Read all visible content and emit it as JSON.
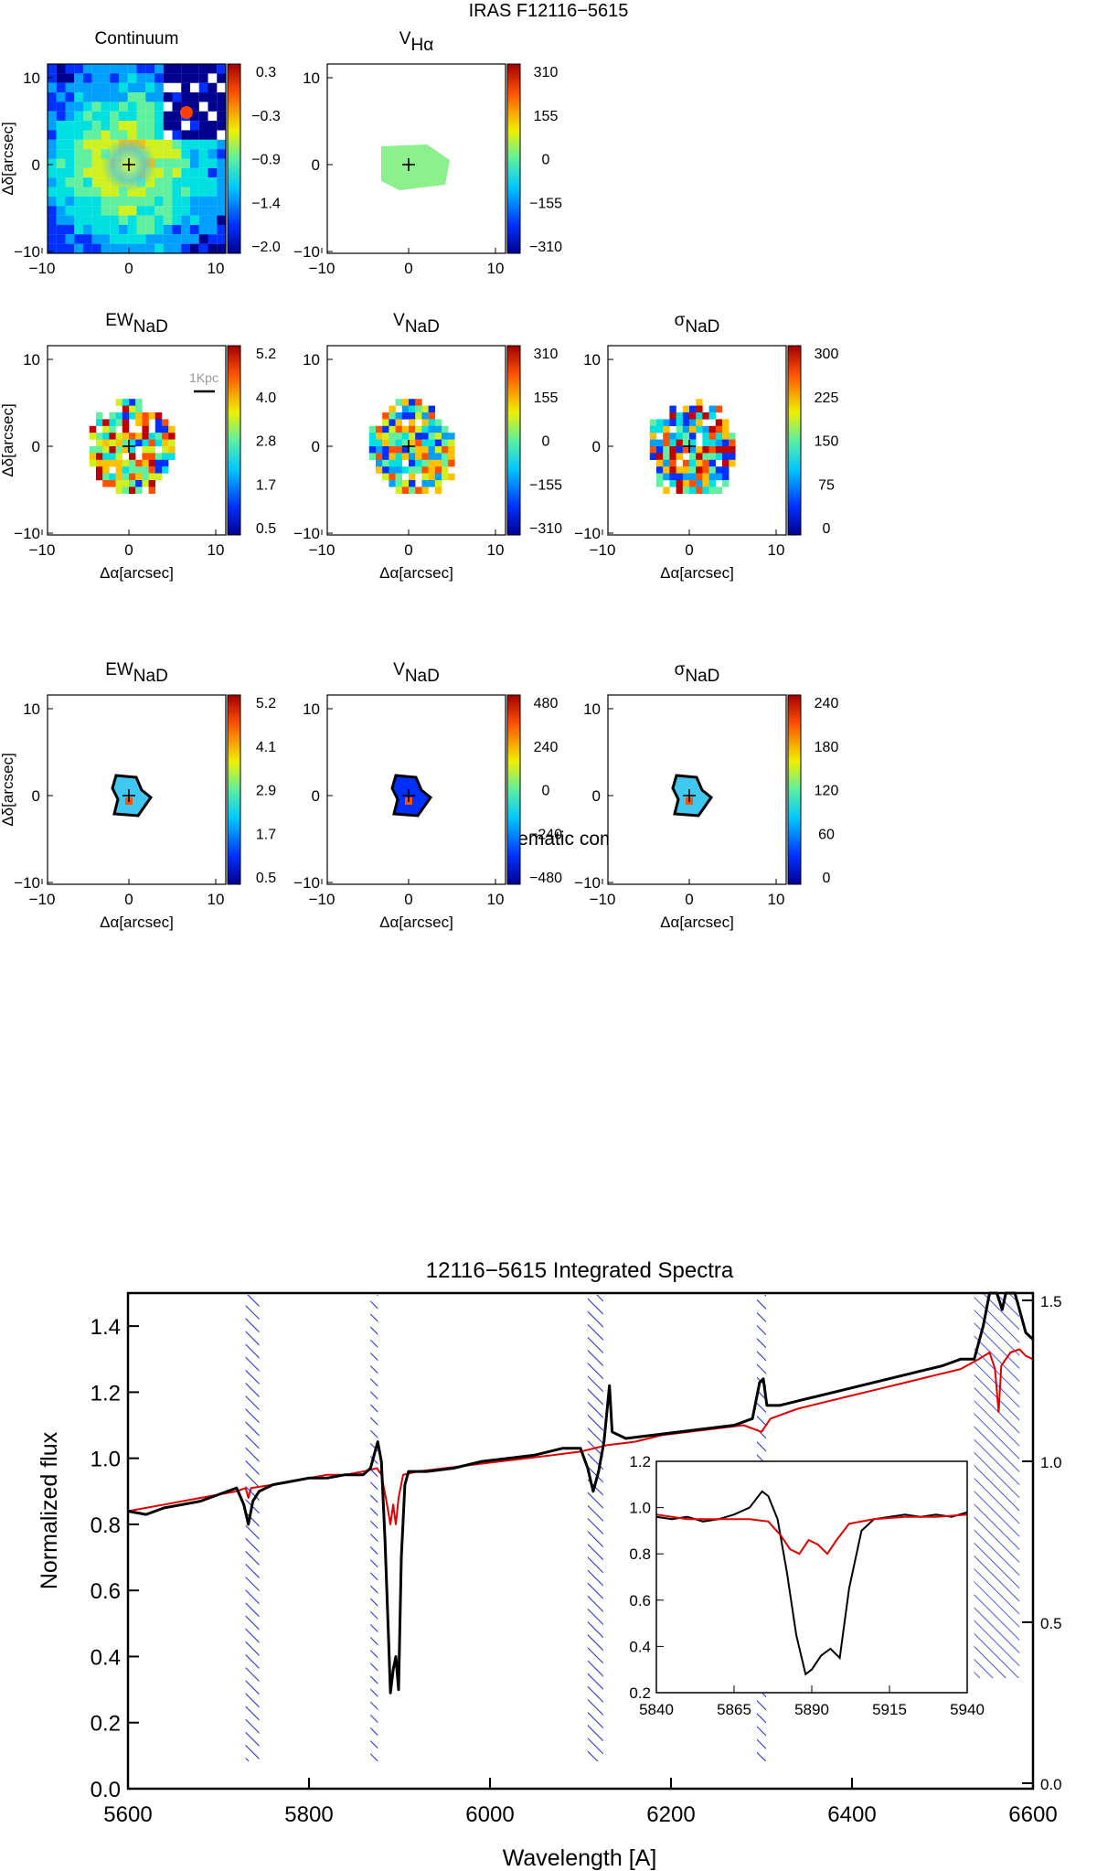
{
  "figure_title": "IRAS F12116−5615",
  "section2_title": "Second kinematic component",
  "panels": [
    {
      "id": "continuum",
      "title_main": "Continuum",
      "title_sub": "",
      "row": 0,
      "col": 0,
      "ticks": [
        "0.3",
        "−0.3",
        "−0.9",
        "−1.4",
        "−2.0"
      ],
      "xlabel": "",
      "ylabel": "Δδ[arcsec]",
      "scalebar": ""
    },
    {
      "id": "v-halpha",
      "title_main": "V",
      "title_sub": "Hα",
      "row": 0,
      "col": 1,
      "ticks": [
        "310",
        "155",
        "0",
        "−155",
        "−310"
      ],
      "xlabel": "",
      "ylabel": "",
      "scalebar": ""
    },
    {
      "id": "ew-nad",
      "title_main": "EW",
      "title_sub": "NaD",
      "row": 1,
      "col": 0,
      "ticks": [
        "5.2",
        "4.0",
        "2.8",
        "1.7",
        "0.5"
      ],
      "xlabel": "Δα[arcsec]",
      "ylabel": "Δδ[arcsec]",
      "scalebar": "1Kpc"
    },
    {
      "id": "v-nad",
      "title_main": "V",
      "title_sub": "NaD",
      "row": 1,
      "col": 1,
      "ticks": [
        "310",
        "155",
        "0",
        "−155",
        "−310"
      ],
      "xlabel": "Δα[arcsec]",
      "ylabel": "",
      "scalebar": ""
    },
    {
      "id": "sigma-nad",
      "title_main": "σ",
      "title_sub": "NaD",
      "row": 1,
      "col": 2,
      "ticks": [
        "300",
        "225",
        "150",
        "75",
        "0"
      ],
      "xlabel": "Δα[arcsec]",
      "ylabel": "",
      "scalebar": ""
    },
    {
      "id": "ew-nad-2",
      "title_main": "EW",
      "title_sub": "NaD",
      "row": 2,
      "col": 0,
      "ticks": [
        "5.2",
        "4.1",
        "2.9",
        "1.7",
        "0.5"
      ],
      "xlabel": "Δα[arcsec]",
      "ylabel": "Δδ[arcsec]",
      "scalebar": ""
    },
    {
      "id": "v-nad-2",
      "title_main": "V",
      "title_sub": "NaD",
      "row": 2,
      "col": 1,
      "ticks": [
        "480",
        "240",
        "0",
        "−240",
        "−480"
      ],
      "xlabel": "Δα[arcsec]",
      "ylabel": "",
      "scalebar": ""
    },
    {
      "id": "sigma-nad-2",
      "title_main": "σ",
      "title_sub": "NaD",
      "row": 2,
      "col": 2,
      "ticks": [
        "240",
        "180",
        "120",
        "60",
        "0"
      ],
      "xlabel": "Δα[arcsec]",
      "ylabel": "",
      "scalebar": ""
    }
  ],
  "map_axes": {
    "xticks": [
      "−10",
      "0",
      "10"
    ],
    "yticks": [
      "10",
      "0",
      "−10"
    ]
  },
  "chart_data": [
    {
      "type": "line",
      "title": "12116−5615 Integrated Spectra",
      "xlabel": "Wavelength [A]",
      "ylabel": "Normalized flux",
      "xlim": [
        5600,
        6600
      ],
      "ylim": [
        0,
        1.5
      ],
      "xticks": [
        5600,
        5800,
        6000,
        6200,
        6400,
        6600
      ],
      "yticks": [
        0.0,
        0.2,
        0.4,
        0.6,
        0.8,
        1.0,
        1.2,
        1.4
      ],
      "right_ticks": [
        "1.5",
        "1.0",
        "0.5",
        "0.0"
      ],
      "masked_regions": [
        [
          5730,
          5745
        ],
        [
          5868,
          5876
        ],
        [
          6108,
          6125
        ],
        [
          6295,
          6305
        ],
        [
          6535,
          6585
        ]
      ],
      "series": [
        {
          "color": "#000000",
          "points": [
            [
              5600,
              0.84
            ],
            [
              5620,
              0.83
            ],
            [
              5640,
              0.85
            ],
            [
              5660,
              0.86
            ],
            [
              5680,
              0.87
            ],
            [
              5700,
              0.89
            ],
            [
              5720,
              0.91
            ],
            [
              5728,
              0.86
            ],
            [
              5733,
              0.8
            ],
            [
              5738,
              0.87
            ],
            [
              5745,
              0.9
            ],
            [
              5760,
              0.92
            ],
            [
              5780,
              0.93
            ],
            [
              5800,
              0.94
            ],
            [
              5820,
              0.94
            ],
            [
              5840,
              0.95
            ],
            [
              5860,
              0.95
            ],
            [
              5868,
              0.97
            ],
            [
              5876,
              1.05
            ],
            [
              5880,
              0.99
            ],
            [
              5884,
              0.75
            ],
            [
              5888,
              0.45
            ],
            [
              5890,
              0.29
            ],
            [
              5893,
              0.36
            ],
            [
              5896,
              0.4
            ],
            [
              5899,
              0.3
            ],
            [
              5902,
              0.7
            ],
            [
              5906,
              0.92
            ],
            [
              5910,
              0.96
            ],
            [
              5930,
              0.96
            ],
            [
              5960,
              0.97
            ],
            [
              5990,
              0.99
            ],
            [
              6020,
              1.0
            ],
            [
              6050,
              1.01
            ],
            [
              6080,
              1.03
            ],
            [
              6100,
              1.03
            ],
            [
              6108,
              0.97
            ],
            [
              6114,
              0.9
            ],
            [
              6120,
              0.96
            ],
            [
              6126,
              1.05
            ],
            [
              6132,
              1.22
            ],
            [
              6135,
              1.08
            ],
            [
              6150,
              1.06
            ],
            [
              6180,
              1.07
            ],
            [
              6210,
              1.08
            ],
            [
              6240,
              1.09
            ],
            [
              6270,
              1.1
            ],
            [
              6290,
              1.12
            ],
            [
              6298,
              1.23
            ],
            [
              6302,
              1.24
            ],
            [
              6306,
              1.16
            ],
            [
              6320,
              1.16
            ],
            [
              6350,
              1.18
            ],
            [
              6380,
              1.2
            ],
            [
              6410,
              1.22
            ],
            [
              6440,
              1.24
            ],
            [
              6470,
              1.26
            ],
            [
              6500,
              1.28
            ],
            [
              6520,
              1.3
            ],
            [
              6535,
              1.3
            ],
            [
              6545,
              1.4
            ],
            [
              6552,
              1.5
            ],
            [
              6560,
              1.5
            ],
            [
              6566,
              1.45
            ],
            [
              6570,
              1.5
            ],
            [
              6580,
              1.5
            ],
            [
              6585,
              1.45
            ],
            [
              6592,
              1.38
            ],
            [
              6600,
              1.36
            ]
          ]
        },
        {
          "color": "#e00000",
          "points": [
            [
              5600,
              0.84
            ],
            [
              5620,
              0.85
            ],
            [
              5640,
              0.86
            ],
            [
              5660,
              0.87
            ],
            [
              5680,
              0.88
            ],
            [
              5700,
              0.89
            ],
            [
              5720,
              0.9
            ],
            [
              5730,
              0.91
            ],
            [
              5733,
              0.88
            ],
            [
              5736,
              0.91
            ],
            [
              5760,
              0.92
            ],
            [
              5780,
              0.93
            ],
            [
              5800,
              0.94
            ],
            [
              5820,
              0.95
            ],
            [
              5840,
              0.95
            ],
            [
              5860,
              0.96
            ],
            [
              5875,
              0.97
            ],
            [
              5880,
              0.95
            ],
            [
              5885,
              0.88
            ],
            [
              5890,
              0.8
            ],
            [
              5893,
              0.86
            ],
            [
              5896,
              0.8
            ],
            [
              5899,
              0.88
            ],
            [
              5904,
              0.95
            ],
            [
              5920,
              0.96
            ],
            [
              5950,
              0.97
            ],
            [
              5980,
              0.98
            ],
            [
              6010,
              0.99
            ],
            [
              6040,
              1.0
            ],
            [
              6070,
              1.01
            ],
            [
              6100,
              1.02
            ],
            [
              6130,
              1.04
            ],
            [
              6160,
              1.05
            ],
            [
              6190,
              1.07
            ],
            [
              6220,
              1.08
            ],
            [
              6250,
              1.09
            ],
            [
              6280,
              1.1
            ],
            [
              6300,
              1.08
            ],
            [
              6310,
              1.12
            ],
            [
              6340,
              1.15
            ],
            [
              6370,
              1.17
            ],
            [
              6400,
              1.19
            ],
            [
              6430,
              1.21
            ],
            [
              6460,
              1.23
            ],
            [
              6490,
              1.25
            ],
            [
              6520,
              1.27
            ],
            [
              6540,
              1.3
            ],
            [
              6552,
              1.32
            ],
            [
              6558,
              1.27
            ],
            [
              6562,
              1.14
            ],
            [
              6565,
              1.28
            ],
            [
              6575,
              1.32
            ],
            [
              6585,
              1.33
            ],
            [
              6592,
              1.31
            ],
            [
              6600,
              1.3
            ]
          ]
        }
      ]
    },
    {
      "type": "line",
      "title": "",
      "xlabel": "",
      "ylabel": "",
      "xlim": [
        5840,
        5940
      ],
      "ylim": [
        0.2,
        1.2
      ],
      "xticks": [
        5840,
        5865,
        5890,
        5915,
        5940
      ],
      "yticks": [
        0.2,
        0.4,
        0.6,
        0.8,
        1.0,
        1.2
      ],
      "series": [
        {
          "color": "#000000",
          "points": [
            [
              5840,
              0.96
            ],
            [
              5845,
              0.95
            ],
            [
              5850,
              0.96
            ],
            [
              5855,
              0.94
            ],
            [
              5860,
              0.95
            ],
            [
              5865,
              0.97
            ],
            [
              5870,
              1.0
            ],
            [
              5874,
              1.07
            ],
            [
              5876,
              1.05
            ],
            [
              5879,
              0.95
            ],
            [
              5882,
              0.72
            ],
            [
              5885,
              0.45
            ],
            [
              5888,
              0.28
            ],
            [
              5890,
              0.3
            ],
            [
              5893,
              0.36
            ],
            [
              5896,
              0.39
            ],
            [
              5899,
              0.35
            ],
            [
              5902,
              0.65
            ],
            [
              5906,
              0.9
            ],
            [
              5910,
              0.95
            ],
            [
              5915,
              0.96
            ],
            [
              5920,
              0.97
            ],
            [
              5925,
              0.96
            ],
            [
              5930,
              0.97
            ],
            [
              5935,
              0.96
            ],
            [
              5940,
              0.98
            ]
          ]
        },
        {
          "color": "#e00000",
          "points": [
            [
              5840,
              0.97
            ],
            [
              5850,
              0.95
            ],
            [
              5860,
              0.95
            ],
            [
              5870,
              0.95
            ],
            [
              5876,
              0.94
            ],
            [
              5880,
              0.88
            ],
            [
              5883,
              0.82
            ],
            [
              5886,
              0.8
            ],
            [
              5889,
              0.86
            ],
            [
              5892,
              0.84
            ],
            [
              5895,
              0.8
            ],
            [
              5898,
              0.86
            ],
            [
              5902,
              0.93
            ],
            [
              5910,
              0.95
            ],
            [
              5920,
              0.96
            ],
            [
              5930,
              0.96
            ],
            [
              5940,
              0.97
            ]
          ]
        }
      ]
    }
  ]
}
